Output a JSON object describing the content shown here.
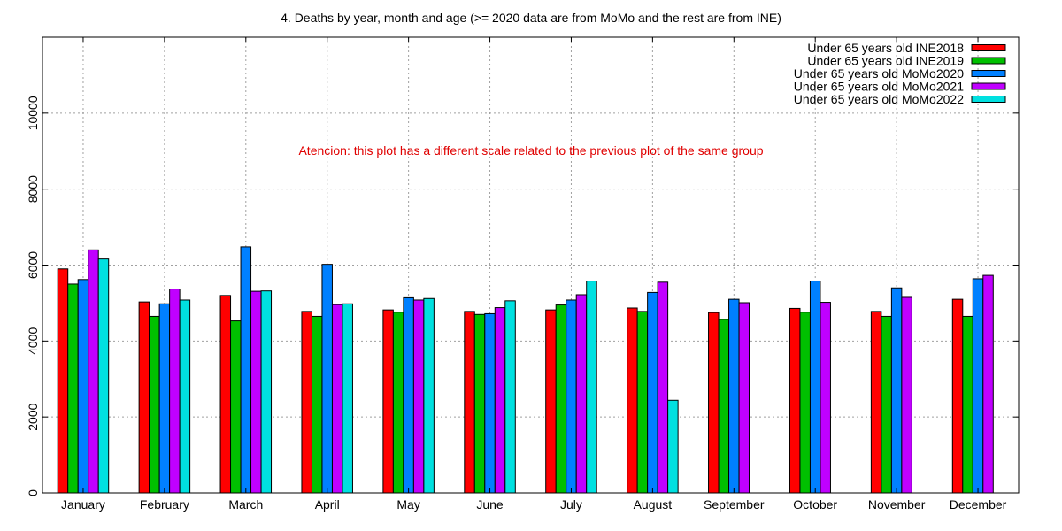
{
  "chart_data": {
    "type": "bar",
    "title": "4. Deaths by year, month and age (>= 2020 data are from MoMo and the rest are from INE)",
    "xlabel": "",
    "ylabel": "",
    "ylim": [
      0,
      12000
    ],
    "yticks": [
      0,
      2000,
      4000,
      6000,
      8000,
      10000
    ],
    "grid": true,
    "legend_position": "top-right",
    "annotation": "Atencion: this plot has a different scale related to the previous plot of the same group",
    "annotation_color": "#e00000",
    "categories": [
      "January",
      "February",
      "March",
      "April",
      "May",
      "June",
      "July",
      "August",
      "September",
      "October",
      "November",
      "December"
    ],
    "series": [
      {
        "name": "Under 65 years old INE2018",
        "color": "#ff0000",
        "values": [
          5900,
          5030,
          5200,
          4780,
          4820,
          4780,
          4820,
          4870,
          4750,
          4860,
          4780,
          5100
        ]
      },
      {
        "name": "Under 65 years old INE2019",
        "color": "#00c000",
        "values": [
          5500,
          4650,
          4530,
          4650,
          4760,
          4700,
          4950,
          4780,
          4570,
          4760,
          4650,
          4650
        ]
      },
      {
        "name": "Under 65 years old MoMo2020",
        "color": "#0080ff",
        "values": [
          5620,
          4980,
          6480,
          6020,
          5140,
          4720,
          5080,
          5280,
          5100,
          5580,
          5400,
          5640
        ]
      },
      {
        "name": "Under 65 years old MoMo2021",
        "color": "#c000ff",
        "values": [
          6400,
          5370,
          5310,
          4960,
          5080,
          4880,
          5220,
          5550,
          5010,
          5020,
          5150,
          5730
        ]
      },
      {
        "name": "Under 65 years old MoMo2022",
        "color": "#00e0e0",
        "values": [
          6160,
          5080,
          5320,
          4980,
          5120,
          5060,
          5580,
          2440,
          null,
          null,
          null,
          null
        ]
      }
    ]
  }
}
